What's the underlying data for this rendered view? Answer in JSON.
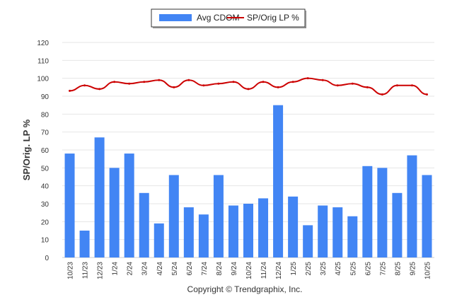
{
  "chart_data": {
    "type": "bar+line",
    "ylabel": "SP/Orig. LP %",
    "ylim": [
      0,
      120
    ],
    "yticks": [
      0,
      10,
      20,
      30,
      40,
      50,
      60,
      70,
      80,
      90,
      100,
      110,
      120
    ],
    "grid": true,
    "legend_placement": "top-center",
    "categories": [
      "10/23",
      "11/23",
      "12/23",
      "1/24",
      "2/24",
      "3/24",
      "4/24",
      "5/24",
      "6/24",
      "7/24",
      "8/24",
      "9/24",
      "10/24",
      "11/24",
      "12/24",
      "1/25",
      "2/25",
      "3/25",
      "4/25",
      "5/25",
      "6/25",
      "7/25",
      "8/25",
      "9/25",
      "10/25"
    ],
    "series": [
      {
        "name": "Avg CDOM",
        "type": "bar",
        "color": "#4285f4",
        "values": [
          58,
          15,
          67,
          50,
          58,
          36,
          19,
          46,
          28,
          24,
          46,
          29,
          30,
          33,
          85,
          34,
          18,
          29,
          28,
          23,
          51,
          50,
          36,
          57,
          46
        ]
      },
      {
        "name": "SP/Orig LP %",
        "type": "line",
        "color": "#cc0000",
        "values": [
          93,
          96,
          94,
          98,
          97,
          98,
          99,
          95,
          99,
          96,
          97,
          98,
          94,
          98,
          95,
          98,
          100,
          99,
          96,
          97,
          95,
          91,
          96,
          96,
          91
        ]
      }
    ]
  },
  "footer": {
    "copyright": "Copyright © Trendgraphix, Inc."
  }
}
